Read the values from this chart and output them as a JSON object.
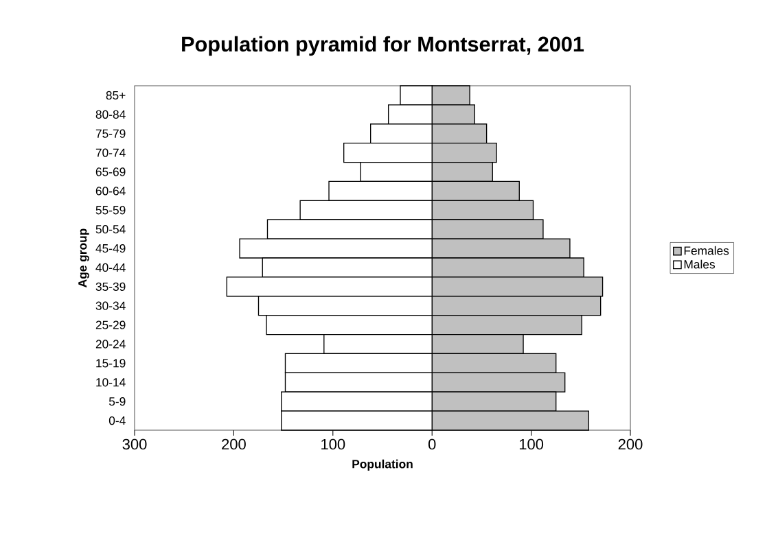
{
  "chart_data": {
    "type": "bar",
    "orientation": "horizontal",
    "title": "Population pyramid for Montserrat, 2001",
    "xlabel": "Population",
    "ylabel": "Age group",
    "categories": [
      "85+",
      "80-84",
      "75-79",
      "70-74",
      "65-69",
      "60-64",
      "55-59",
      "50-54",
      "45-49",
      "40-44",
      "35-39",
      "30-34",
      "25-29",
      "20-24",
      "15-19",
      "10-14",
      "5-9",
      "0-4"
    ],
    "series": [
      {
        "name": "Females",
        "color": "#c0c0c0",
        "values": [
          38,
          43,
          55,
          65,
          61,
          88,
          102,
          112,
          139,
          153,
          172,
          170,
          151,
          92,
          125,
          134,
          125,
          158
        ]
      },
      {
        "name": "Males",
        "color": "#ffffff",
        "values": [
          -32,
          -44,
          -62,
          -89,
          -72,
          -104,
          -133,
          -166,
          -194,
          -171,
          -207,
          -175,
          -167,
          -109,
          -148,
          -148,
          -152,
          -152
        ]
      }
    ],
    "xlim": [
      -300,
      200
    ],
    "xticks": [
      {
        "value": -300,
        "label": "300"
      },
      {
        "value": -200,
        "label": "200"
      },
      {
        "value": -100,
        "label": "100"
      },
      0,
      100,
      200
    ],
    "stacked": true,
    "legend": "right"
  }
}
